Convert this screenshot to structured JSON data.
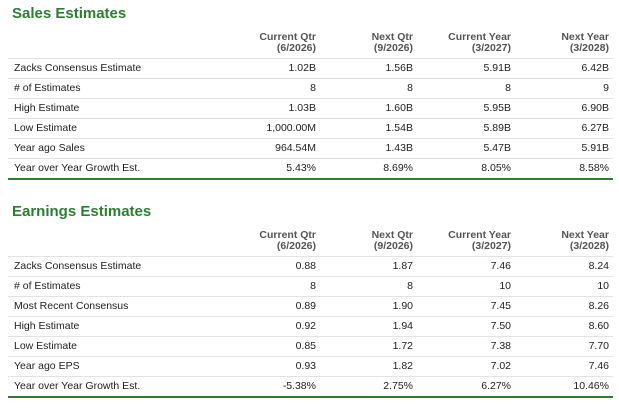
{
  "colors": {
    "accent": "#2e7d32"
  },
  "sales": {
    "title": "Sales Estimates",
    "columns": [
      {
        "line1": "Current Qtr",
        "line2": "(6/2026)"
      },
      {
        "line1": "Next Qtr",
        "line2": "(9/2026)"
      },
      {
        "line1": "Current Year",
        "line2": "(3/2027)"
      },
      {
        "line1": "Next Year",
        "line2": "(3/2028)"
      }
    ],
    "rows": [
      {
        "label": "Zacks Consensus Estimate",
        "values": [
          "1.02B",
          "1.56B",
          "5.91B",
          "6.42B"
        ]
      },
      {
        "label": "# of Estimates",
        "values": [
          "8",
          "8",
          "8",
          "9"
        ]
      },
      {
        "label": "High Estimate",
        "values": [
          "1.03B",
          "1.60B",
          "5.95B",
          "6.90B"
        ]
      },
      {
        "label": "Low Estimate",
        "values": [
          "1,000.00M",
          "1.54B",
          "5.89B",
          "6.27B"
        ]
      },
      {
        "label": "Year ago Sales",
        "values": [
          "964.54M",
          "1.43B",
          "5.47B",
          "5.91B"
        ]
      },
      {
        "label": "Year over Year Growth Est.",
        "values": [
          "5.43%",
          "8.69%",
          "8.05%",
          "8.58%"
        ]
      }
    ]
  },
  "earnings": {
    "title": "Earnings Estimates",
    "columns": [
      {
        "line1": "Current Qtr",
        "line2": "(6/2026)"
      },
      {
        "line1": "Next Qtr",
        "line2": "(9/2026)"
      },
      {
        "line1": "Current Year",
        "line2": "(3/2027)"
      },
      {
        "line1": "Next Year",
        "line2": "(3/2028)"
      }
    ],
    "rows": [
      {
        "label": "Zacks Consensus Estimate",
        "values": [
          "0.88",
          "1.87",
          "7.46",
          "8.24"
        ]
      },
      {
        "label": "# of Estimates",
        "values": [
          "8",
          "8",
          "10",
          "10"
        ]
      },
      {
        "label": "Most Recent Consensus",
        "values": [
          "0.89",
          "1.90",
          "7.45",
          "8.26"
        ]
      },
      {
        "label": "High Estimate",
        "values": [
          "0.92",
          "1.94",
          "7.50",
          "8.60"
        ]
      },
      {
        "label": "Low Estimate",
        "values": [
          "0.85",
          "1.72",
          "7.38",
          "7.70"
        ]
      },
      {
        "label": "Year ago EPS",
        "values": [
          "0.93",
          "1.82",
          "7.02",
          "7.46"
        ]
      },
      {
        "label": "Year over Year Growth Est.",
        "values": [
          "-5.38%",
          "2.75%",
          "6.27%",
          "10.46%"
        ]
      }
    ]
  }
}
